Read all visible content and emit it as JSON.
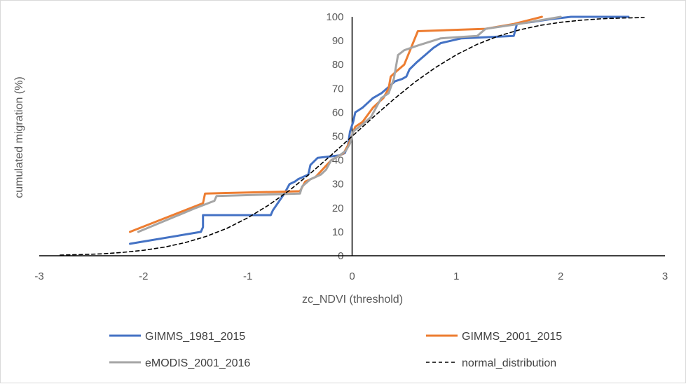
{
  "chart_data": {
    "type": "line",
    "title": "",
    "xlabel": "zc_NDVI (threshold)",
    "ylabel": "cumulated migration (%)",
    "xlim": [
      -3,
      3
    ],
    "ylim": [
      0,
      100
    ],
    "x_ticks": [
      "-3",
      "-2",
      "-1",
      "0",
      "1",
      "2",
      "3"
    ],
    "y_ticks": [
      "0",
      "10",
      "20",
      "30",
      "40",
      "50",
      "60",
      "70",
      "80",
      "90",
      "100"
    ],
    "grid": false,
    "legend_position": "bottom",
    "series": [
      {
        "name": "GIMMS_1981_2015",
        "color": "#4472c4",
        "dash": "solid",
        "points": [
          [
            -2.13,
            5
          ],
          [
            -1.45,
            10
          ],
          [
            -1.43,
            12
          ],
          [
            -1.43,
            17
          ],
          [
            -0.78,
            17
          ],
          [
            -0.76,
            19
          ],
          [
            -0.65,
            26
          ],
          [
            -0.6,
            30
          ],
          [
            -0.55,
            31
          ],
          [
            -0.52,
            32
          ],
          [
            -0.42,
            34
          ],
          [
            -0.4,
            38
          ],
          [
            -0.33,
            41
          ],
          [
            -0.12,
            42
          ],
          [
            -0.07,
            43
          ],
          [
            -0.04,
            46
          ],
          [
            -0.02,
            52
          ],
          [
            0.01,
            56
          ],
          [
            0.03,
            60
          ],
          [
            0.1,
            62
          ],
          [
            0.15,
            64
          ],
          [
            0.2,
            66
          ],
          [
            0.28,
            68
          ],
          [
            0.36,
            71
          ],
          [
            0.41,
            73
          ],
          [
            0.48,
            74
          ],
          [
            0.52,
            75
          ],
          [
            0.55,
            78
          ],
          [
            0.62,
            81
          ],
          [
            0.7,
            84
          ],
          [
            0.78,
            87
          ],
          [
            0.85,
            89
          ],
          [
            0.95,
            90
          ],
          [
            1.05,
            91
          ],
          [
            1.55,
            92
          ],
          [
            1.58,
            97
          ],
          [
            1.75,
            98
          ],
          [
            1.9,
            99
          ],
          [
            2.1,
            100
          ],
          [
            2.65,
            100
          ]
        ]
      },
      {
        "name": "GIMMS_2001_2015",
        "color": "#ed7d31",
        "dash": "solid",
        "points": [
          [
            -2.13,
            10
          ],
          [
            -1.43,
            22
          ],
          [
            -1.41,
            26
          ],
          [
            -0.5,
            27
          ],
          [
            -0.45,
            31
          ],
          [
            -0.35,
            33
          ],
          [
            -0.2,
            40
          ],
          [
            -0.08,
            43
          ],
          [
            -0.03,
            47
          ],
          [
            0.03,
            54
          ],
          [
            0.1,
            56
          ],
          [
            0.2,
            62
          ],
          [
            0.3,
            66
          ],
          [
            0.35,
            70
          ],
          [
            0.37,
            75
          ],
          [
            0.42,
            77
          ],
          [
            0.5,
            80
          ],
          [
            0.63,
            94
          ],
          [
            1.28,
            95
          ],
          [
            1.55,
            97
          ],
          [
            1.82,
            100
          ]
        ]
      },
      {
        "name": "eMODIS_2001_2016",
        "color": "#a5a5a5",
        "dash": "solid",
        "points": [
          [
            -2.05,
            10
          ],
          [
            -1.5,
            20
          ],
          [
            -1.32,
            23
          ],
          [
            -1.3,
            25
          ],
          [
            -0.5,
            26
          ],
          [
            -0.48,
            29
          ],
          [
            -0.4,
            32
          ],
          [
            -0.3,
            34
          ],
          [
            -0.25,
            36
          ],
          [
            -0.2,
            40
          ],
          [
            -0.12,
            42
          ],
          [
            -0.06,
            44
          ],
          [
            -0.02,
            47
          ],
          [
            0.01,
            52
          ],
          [
            0.1,
            55
          ],
          [
            0.18,
            58
          ],
          [
            0.28,
            66
          ],
          [
            0.35,
            68
          ],
          [
            0.4,
            74
          ],
          [
            0.44,
            84
          ],
          [
            0.5,
            86
          ],
          [
            0.63,
            88
          ],
          [
            0.85,
            91
          ],
          [
            1.2,
            92
          ],
          [
            1.28,
            95
          ],
          [
            1.6,
            97
          ],
          [
            2.0,
            100
          ]
        ]
      },
      {
        "name": "normal_distribution",
        "color": "#000000",
        "dash": "dashed",
        "points": [
          [
            -2.8,
            0.3
          ],
          [
            -2.6,
            0.5
          ],
          [
            -2.4,
            0.8
          ],
          [
            -2.2,
            1.4
          ],
          [
            -2.0,
            2.3
          ],
          [
            -1.8,
            3.6
          ],
          [
            -1.6,
            5.5
          ],
          [
            -1.4,
            8.1
          ],
          [
            -1.2,
            11.5
          ],
          [
            -1.0,
            15.9
          ],
          [
            -0.8,
            21.2
          ],
          [
            -0.6,
            27.4
          ],
          [
            -0.4,
            34.5
          ],
          [
            -0.2,
            42.1
          ],
          [
            0.0,
            50.0
          ],
          [
            0.2,
            57.9
          ],
          [
            0.4,
            65.5
          ],
          [
            0.6,
            72.6
          ],
          [
            0.8,
            78.8
          ],
          [
            1.0,
            84.1
          ],
          [
            1.2,
            88.5
          ],
          [
            1.4,
            91.9
          ],
          [
            1.6,
            94.5
          ],
          [
            1.8,
            96.4
          ],
          [
            2.0,
            97.7
          ],
          [
            2.2,
            98.6
          ],
          [
            2.4,
            99.2
          ],
          [
            2.6,
            99.5
          ],
          [
            2.8,
            99.7
          ]
        ]
      }
    ]
  }
}
